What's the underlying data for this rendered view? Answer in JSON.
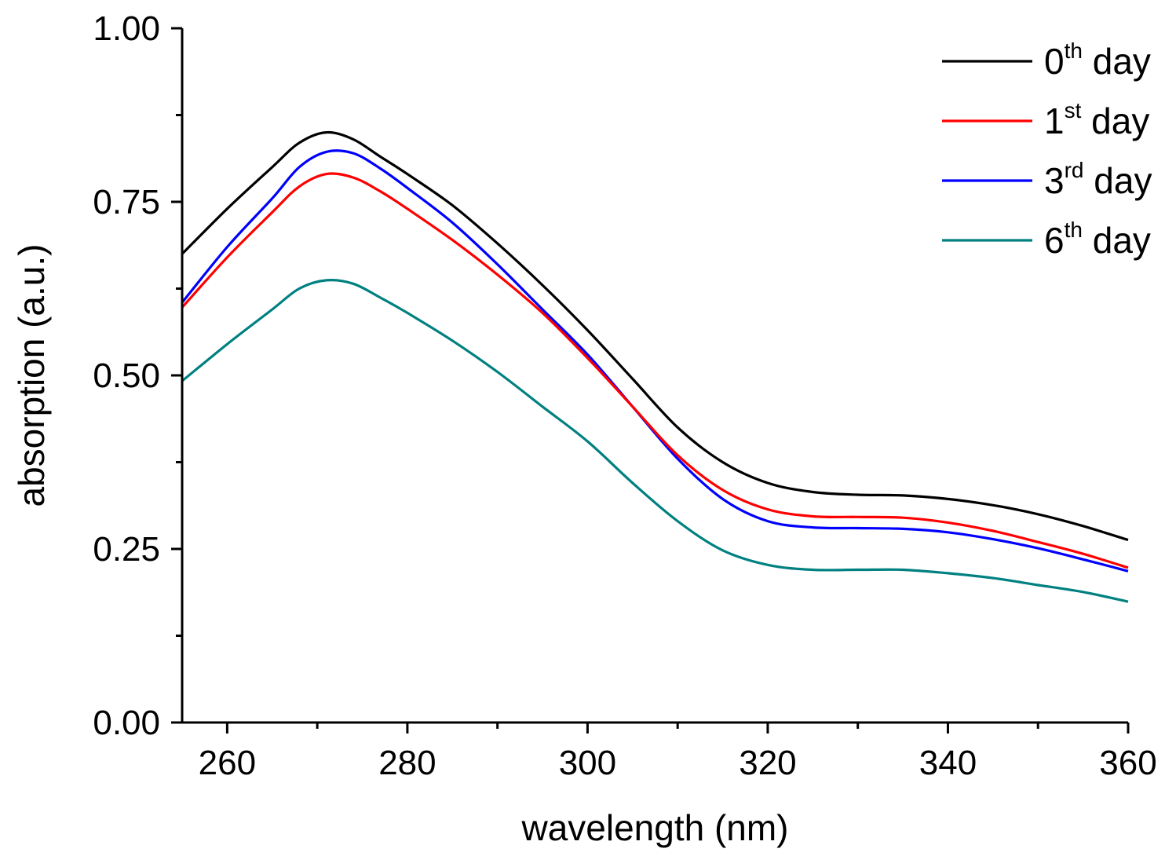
{
  "chart_data": {
    "type": "line",
    "title": "",
    "xlabel": "wavelength (nm)",
    "ylabel": "absorption (a.u.)",
    "xlim": [
      255,
      360
    ],
    "ylim": [
      0,
      1
    ],
    "x_ticks": [
      260,
      280,
      300,
      320,
      340,
      360
    ],
    "x_tick_labels": [
      "260",
      "280",
      "300",
      "320",
      "340",
      "360"
    ],
    "y_ticks": [
      0,
      0.25,
      0.5,
      0.75,
      1
    ],
    "y_tick_labels": [
      "0.00",
      "0.25",
      "0.50",
      "0.75",
      "1.00"
    ],
    "legend_position": "top-right",
    "x": [
      255,
      260,
      265,
      268,
      271,
      274,
      277,
      280,
      285,
      290,
      295,
      300,
      305,
      310,
      315,
      320,
      325,
      330,
      335,
      340,
      345,
      350,
      355,
      360
    ],
    "series": [
      {
        "name": "0th day",
        "label_main": "0",
        "label_sup": "th",
        "label_rest": " day",
        "color": "#000000",
        "values": [
          0.675,
          0.74,
          0.8,
          0.835,
          0.85,
          0.84,
          0.815,
          0.79,
          0.745,
          0.69,
          0.63,
          0.565,
          0.495,
          0.425,
          0.375,
          0.345,
          0.332,
          0.328,
          0.327,
          0.322,
          0.313,
          0.3,
          0.283,
          0.263
        ]
      },
      {
        "name": "1st day",
        "label_main": "1",
        "label_sup": "st",
        "label_rest": " day",
        "color": "#ff0000",
        "values": [
          0.598,
          0.67,
          0.735,
          0.772,
          0.79,
          0.785,
          0.765,
          0.74,
          0.695,
          0.645,
          0.59,
          0.525,
          0.455,
          0.385,
          0.335,
          0.307,
          0.297,
          0.296,
          0.295,
          0.288,
          0.276,
          0.26,
          0.243,
          0.223
        ]
      },
      {
        "name": "3rd day",
        "label_main": "3",
        "label_sup": "rd",
        "label_rest": " day",
        "color": "#0000ff",
        "values": [
          0.605,
          0.685,
          0.755,
          0.8,
          0.822,
          0.82,
          0.798,
          0.77,
          0.72,
          0.66,
          0.595,
          0.53,
          0.455,
          0.38,
          0.322,
          0.29,
          0.281,
          0.28,
          0.279,
          0.274,
          0.264,
          0.251,
          0.235,
          0.218
        ]
      },
      {
        "name": "6th day",
        "label_main": "6",
        "label_sup": "th",
        "label_rest": " day",
        "color": "#008080",
        "values": [
          0.492,
          0.545,
          0.595,
          0.625,
          0.637,
          0.632,
          0.612,
          0.59,
          0.55,
          0.505,
          0.455,
          0.405,
          0.345,
          0.29,
          0.248,
          0.227,
          0.22,
          0.22,
          0.22,
          0.215,
          0.208,
          0.198,
          0.188,
          0.174
        ]
      }
    ]
  }
}
